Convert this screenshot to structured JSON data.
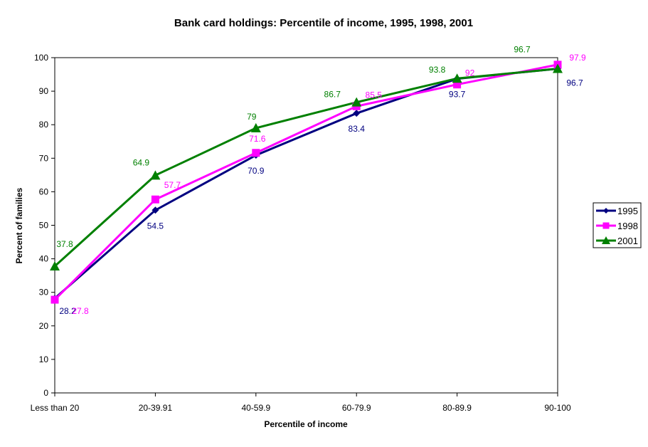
{
  "chart_data": {
    "type": "line",
    "title": "Bank card holdings: Percentile of income, 1995, 1998, 2001",
    "xlabel": "Percentile of income",
    "ylabel": "Percent of families",
    "categories": [
      "Less than 20",
      "20-39.91",
      "40-59.9",
      "60-79.9",
      "80-89.9",
      "90-100"
    ],
    "ylim": [
      0,
      100
    ],
    "yticks": [
      0,
      10,
      20,
      30,
      40,
      50,
      60,
      70,
      80,
      90,
      100
    ],
    "grid": false,
    "legend_position": "right",
    "series": [
      {
        "name": "1995",
        "values": [
          28.2,
          54.5,
          70.9,
          83.4,
          93.7,
          96.7
        ],
        "color": "#000080",
        "marker": "diamond"
      },
      {
        "name": "1998",
        "values": [
          27.8,
          57.7,
          71.6,
          85.5,
          92,
          97.9
        ],
        "color": "#FF00FF",
        "marker": "square"
      },
      {
        "name": "2001",
        "values": [
          37.8,
          64.9,
          79,
          86.7,
          93.8,
          96.7
        ],
        "color": "#008000",
        "marker": "triangle"
      }
    ]
  }
}
